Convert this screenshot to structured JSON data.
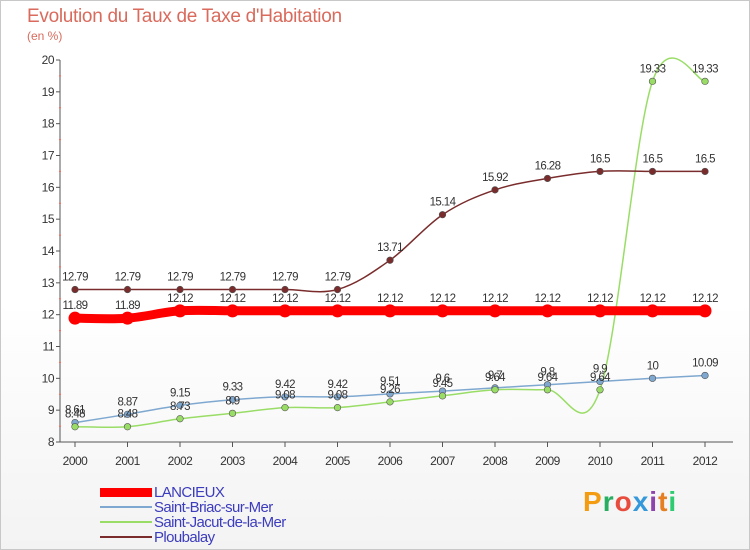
{
  "header": {
    "title": "Evolution du Taux de Taxe d'Habitation",
    "subtitle": "(en %)"
  },
  "logo": {
    "text": "Proxiti",
    "colors": [
      "#f39c12",
      "#27ae60",
      "#e74c3c",
      "#3498db",
      "#8e44ad",
      "#e67e22",
      "#2ecc71"
    ]
  },
  "chart_data": {
    "type": "line",
    "x": [
      "2000",
      "2001",
      "2002",
      "2003",
      "2004",
      "2005",
      "2006",
      "2007",
      "2008",
      "2009",
      "2010",
      "2011",
      "2012"
    ],
    "ylim": [
      8,
      20
    ],
    "yticks": [
      "8",
      "9",
      "10",
      "11",
      "12",
      "13",
      "14",
      "15",
      "16",
      "17",
      "18",
      "19",
      "20"
    ],
    "grid": false,
    "legend_position": "bottom-left",
    "series": [
      {
        "name": "LANCIEUX",
        "color": "#ff0000",
        "values": [
          11.89,
          11.89,
          12.12,
          12.12,
          12.12,
          12.12,
          12.12,
          12.12,
          12.12,
          12.12,
          12.12,
          12.12,
          12.12
        ],
        "labels": [
          "11.89",
          "11.89",
          "12.12",
          "12.12",
          "12.12",
          "12.12",
          "12.12",
          "12.12",
          "12.12",
          "12.12",
          "12.12",
          "12.12",
          "12.12"
        ]
      },
      {
        "name": "Saint-Briac-sur-Mer",
        "color": "#7fa8d0",
        "values": [
          8.61,
          8.87,
          9.15,
          9.33,
          9.42,
          9.42,
          9.51,
          9.6,
          9.7,
          9.8,
          9.9,
          10,
          10.09
        ],
        "labels": [
          "8.61",
          "8.87",
          "9.15",
          "9.33",
          "9.42",
          "9.42",
          "9.51",
          "9.6",
          "9.7",
          "9.8",
          "9.9",
          "10",
          "10.09"
        ]
      },
      {
        "name": "Saint-Jacut-de-la-Mer",
        "color": "#99dd66",
        "values": [
          8.48,
          8.48,
          8.73,
          8.9,
          9.08,
          9.08,
          9.26,
          9.45,
          9.64,
          9.64,
          9.64,
          19.33,
          19.33
        ],
        "labels": [
          "8.48",
          "8.48",
          "8.73",
          "8.9",
          "9.08",
          "9.08",
          "9.26",
          "9.45",
          "9.64",
          "9.64",
          "9.64",
          "19.33",
          "19.33"
        ]
      },
      {
        "name": "Ploubalay",
        "color": "#7a2c2c",
        "values": [
          12.79,
          12.79,
          12.79,
          12.79,
          12.79,
          12.79,
          13.71,
          15.14,
          15.92,
          16.28,
          16.5,
          16.5,
          16.5
        ],
        "labels": [
          "12.79",
          "12.79",
          "12.79",
          "12.79",
          "12.79",
          "12.79",
          "13.71",
          "15.14",
          "15.92",
          "16.28",
          "16.5",
          "16.5",
          "16.5"
        ]
      }
    ]
  }
}
